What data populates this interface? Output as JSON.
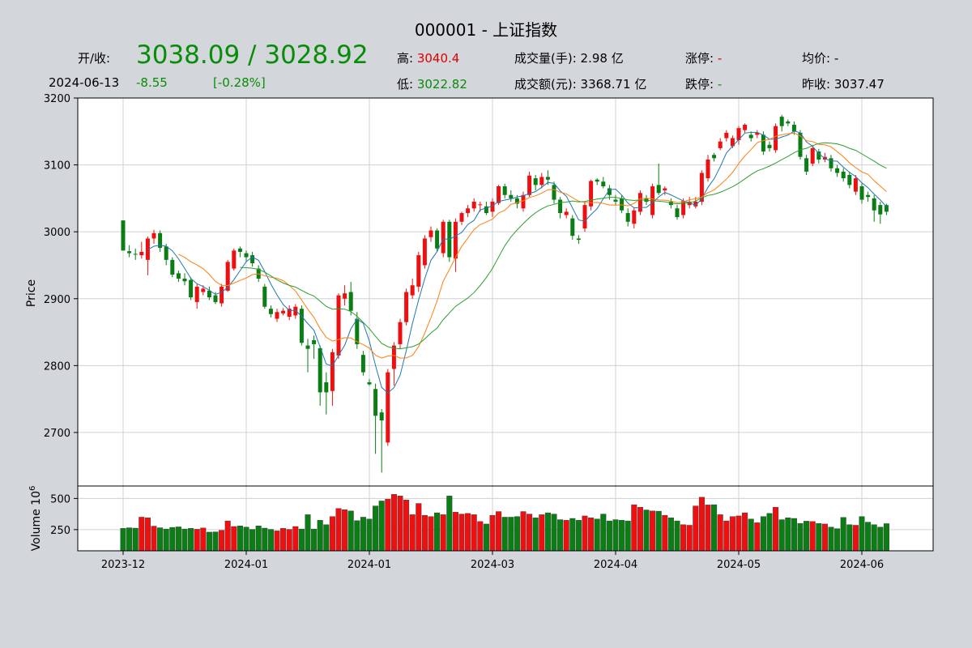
{
  "header": {
    "title": "000001 - 上证指数",
    "open_close_label": "开/收:",
    "open_close_value": "3038.09 / 3028.92",
    "date": "2024-06-13",
    "change": "-8.55",
    "change_pct": "[-0.28%]",
    "high_label": "高:",
    "high_value": "3040.4",
    "low_label": "低:",
    "low_value": "3022.82",
    "volume_label": "成交量(手):",
    "volume_value": "2.98 亿",
    "amount_label": "成交额(元):",
    "amount_value": "3368.71 亿",
    "limit_up_label": "涨停:",
    "limit_up_value": "-",
    "limit_down_label": "跌停:",
    "limit_down_value": "-",
    "avg_label": "均价:",
    "avg_value": "-",
    "prev_close_label": "昨收:",
    "prev_close_value": "3037.47"
  },
  "colors": {
    "up": "#ee1010",
    "down": "#0a7d14",
    "ma5": "#1f77b4",
    "ma10": "#ff7f0e",
    "ma20": "#2ca02c"
  },
  "chart_data": {
    "type": "candlestick",
    "ylabel": "Price",
    "ylim": [
      2620,
      3200
    ],
    "yticks": [
      2700,
      2800,
      2900,
      3000,
      3100,
      3200
    ],
    "volume_ylabel": "Volume  10^6",
    "volume_yticks": [
      250,
      500
    ],
    "volume_ylim": [
      80,
      600
    ],
    "xticks": [
      {
        "i": 0,
        "label": "2023-12"
      },
      {
        "i": 20,
        "label": "2024-01"
      },
      {
        "i": 40,
        "label": "2024-01"
      },
      {
        "i": 60,
        "label": "2024-03"
      },
      {
        "i": 80,
        "label": "2024-04"
      },
      {
        "i": 100,
        "label": "2024-05"
      },
      {
        "i": 120,
        "label": "2024-06"
      }
    ],
    "candles": [
      [
        3017,
        2972,
        3017,
        2972,
        260
      ],
      [
        2971,
        2968,
        2980,
        2962,
        265
      ],
      [
        2967,
        2966,
        2975,
        2958,
        262
      ],
      [
        2965,
        2970,
        2985,
        2960,
        350
      ],
      [
        2958,
        2990,
        2993,
        2935,
        345
      ],
      [
        2990,
        2998,
        3003,
        2982,
        278
      ],
      [
        2998,
        2976,
        3002,
        2970,
        265
      ],
      [
        2978,
        2958,
        2982,
        2950,
        255
      ],
      [
        2958,
        2936,
        2962,
        2932,
        268
      ],
      [
        2938,
        2930,
        2942,
        2925,
        272
      ],
      [
        2930,
        2926,
        2938,
        2920,
        255
      ],
      [
        2928,
        2902,
        2932,
        2898,
        260
      ],
      [
        2895,
        2918,
        2922,
        2885,
        253
      ],
      [
        2910,
        2915,
        2920,
        2905,
        263
      ],
      [
        2912,
        2902,
        2918,
        2898,
        230
      ],
      [
        2905,
        2895,
        2910,
        2892,
        232
      ],
      [
        2893,
        2918,
        2922,
        2888,
        245
      ],
      [
        2912,
        2955,
        2958,
        2910,
        320
      ],
      [
        2945,
        2972,
        2975,
        2942,
        275
      ],
      [
        2975,
        2970,
        2978,
        2962,
        280
      ],
      [
        2968,
        2962,
        2972,
        2955,
        270
      ],
      [
        2965,
        2953,
        2970,
        2948,
        252
      ],
      [
        2945,
        2930,
        2950,
        2925,
        280
      ],
      [
        2918,
        2888,
        2922,
        2885,
        262
      ],
      [
        2885,
        2877,
        2890,
        2872,
        252
      ],
      [
        2870,
        2880,
        2885,
        2865,
        240
      ],
      [
        2878,
        2882,
        2886,
        2875,
        260
      ],
      [
        2873,
        2885,
        2890,
        2868,
        252
      ],
      [
        2875,
        2888,
        2892,
        2870,
        275
      ],
      [
        2885,
        2834,
        2890,
        2830,
        255
      ],
      [
        2830,
        2825,
        2840,
        2790,
        370
      ],
      [
        2838,
        2832,
        2845,
        2810,
        255
      ],
      [
        2826,
        2760,
        2830,
        2740,
        325
      ],
      [
        2775,
        2760,
        2790,
        2727,
        290
      ],
      [
        2762,
        2820,
        2825,
        2740,
        355
      ],
      [
        2815,
        2905,
        2908,
        2810,
        420
      ],
      [
        2900,
        2908,
        2920,
        2890,
        410
      ],
      [
        2910,
        2882,
        2925,
        2875,
        400
      ],
      [
        2870,
        2832,
        2880,
        2825,
        322
      ],
      [
        2816,
        2790,
        2822,
        2785,
        350
      ],
      [
        2775,
        2772,
        2780,
        2770,
        335
      ],
      [
        2765,
        2725,
        2773,
        2668,
        440
      ],
      [
        2730,
        2718,
        2735,
        2640,
        480
      ],
      [
        2685,
        2790,
        2795,
        2680,
        495
      ],
      [
        2795,
        2830,
        2835,
        2770,
        533
      ],
      [
        2832,
        2865,
        2870,
        2825,
        520
      ],
      [
        2865,
        2910,
        2915,
        2860,
        488
      ],
      [
        2905,
        2920,
        2930,
        2900,
        370
      ],
      [
        2918,
        2965,
        2970,
        2910,
        460
      ],
      [
        2950,
        2990,
        2995,
        2945,
        365
      ],
      [
        2992,
        3002,
        3008,
        2985,
        355
      ],
      [
        3002,
        2975,
        3005,
        2970,
        385
      ],
      [
        2968,
        3015,
        3018,
        2962,
        370
      ],
      [
        3015,
        2962,
        3018,
        2955,
        520
      ],
      [
        2960,
        3015,
        3020,
        2940,
        390
      ],
      [
        3015,
        3028,
        3030,
        3010,
        375
      ],
      [
        3028,
        3035,
        3040,
        3022,
        380
      ],
      [
        3035,
        3045,
        3050,
        3030,
        370
      ],
      [
        3040,
        3041,
        3045,
        3030,
        315
      ],
      [
        3038,
        3028,
        3045,
        3025,
        295
      ],
      [
        3030,
        3045,
        3050,
        3022,
        365
      ],
      [
        3043,
        3068,
        3070,
        3040,
        395
      ],
      [
        3068,
        3055,
        3072,
        3050,
        350
      ],
      [
        3055,
        3050,
        3062,
        3045,
        350
      ],
      [
        3050,
        3042,
        3055,
        3035,
        355
      ],
      [
        3035,
        3055,
        3060,
        3030,
        395
      ],
      [
        3055,
        3084,
        3090,
        3052,
        375
      ],
      [
        3080,
        3070,
        3085,
        3062,
        345
      ],
      [
        3070,
        3082,
        3088,
        3065,
        370
      ],
      [
        3082,
        3078,
        3092,
        3070,
        385
      ],
      [
        3070,
        3048,
        3075,
        3042,
        375
      ],
      [
        3048,
        3028,
        3052,
        3020,
        330
      ],
      [
        3025,
        3030,
        3035,
        3020,
        325
      ],
      [
        3020,
        2994,
        3025,
        2988,
        340
      ],
      [
        2990,
        2988,
        2995,
        2982,
        325
      ],
      [
        3005,
        3040,
        3045,
        3000,
        360
      ],
      [
        3038,
        3076,
        3078,
        3032,
        345
      ],
      [
        3078,
        3075,
        3080,
        3070,
        335
      ],
      [
        3075,
        3068,
        3082,
        3065,
        375
      ],
      [
        3065,
        3055,
        3070,
        3048,
        320
      ],
      [
        3048,
        3045,
        3055,
        3040,
        330
      ],
      [
        3050,
        3032,
        3055,
        3028,
        325
      ],
      [
        3028,
        3015,
        3035,
        3008,
        320
      ],
      [
        3012,
        3032,
        3036,
        3005,
        450
      ],
      [
        3030,
        3058,
        3062,
        3025,
        430
      ],
      [
        3050,
        3045,
        3055,
        3040,
        408
      ],
      [
        3025,
        3068,
        3072,
        3020,
        400
      ],
      [
        3070,
        3058,
        3102,
        3055,
        398
      ],
      [
        3062,
        3065,
        3068,
        3055,
        365
      ],
      [
        3045,
        3040,
        3050,
        3035,
        345
      ],
      [
        3035,
        3022,
        3040,
        3018,
        320
      ],
      [
        3025,
        3046,
        3050,
        3020,
        290
      ],
      [
        3040,
        3045,
        3052,
        3035,
        285
      ],
      [
        3038,
        3045,
        3052,
        3035,
        440
      ],
      [
        3045,
        3088,
        3092,
        3040,
        510
      ],
      [
        3080,
        3108,
        3115,
        3075,
        448
      ],
      [
        3115,
        3110,
        3118,
        3105,
        450
      ],
      [
        3125,
        3135,
        3140,
        3122,
        370
      ],
      [
        3140,
        3148,
        3152,
        3135,
        320
      ],
      [
        3128,
        3140,
        3144,
        3125,
        355
      ],
      [
        3137,
        3155,
        3158,
        3130,
        360
      ],
      [
        3152,
        3160,
        3162,
        3148,
        385
      ],
      [
        3145,
        3140,
        3150,
        3135,
        335
      ],
      [
        3145,
        3148,
        3152,
        3140,
        305
      ],
      [
        3145,
        3120,
        3150,
        3115,
        355
      ],
      [
        3130,
        3125,
        3135,
        3120,
        380
      ],
      [
        3122,
        3158,
        3162,
        3118,
        430
      ],
      [
        3172,
        3158,
        3175,
        3150,
        330
      ],
      [
        3165,
        3162,
        3168,
        3158,
        345
      ],
      [
        3160,
        3150,
        3165,
        3145,
        340
      ],
      [
        3148,
        3112,
        3152,
        3108,
        300
      ],
      [
        3110,
        3090,
        3115,
        3085,
        318
      ],
      [
        3102,
        3125,
        3130,
        3098,
        315
      ],
      [
        3120,
        3108,
        3124,
        3102,
        300
      ],
      [
        3108,
        3112,
        3118,
        3104,
        295
      ],
      [
        3110,
        3095,
        3115,
        3090,
        270
      ],
      [
        3095,
        3088,
        3100,
        3082,
        258
      ],
      [
        3090,
        3080,
        3095,
        3075,
        348
      ],
      [
        3085,
        3070,
        3090,
        3065,
        290
      ],
      [
        3060,
        3080,
        3085,
        3055,
        285
      ],
      [
        3068,
        3048,
        3072,
        3042,
        355
      ],
      [
        3055,
        3052,
        3060,
        3045,
        310
      ],
      [
        3050,
        3032,
        3055,
        3015,
        290
      ],
      [
        3040,
        3026,
        3045,
        3012,
        270
      ],
      [
        3040,
        3030,
        3042,
        3025,
        298
      ]
    ]
  }
}
